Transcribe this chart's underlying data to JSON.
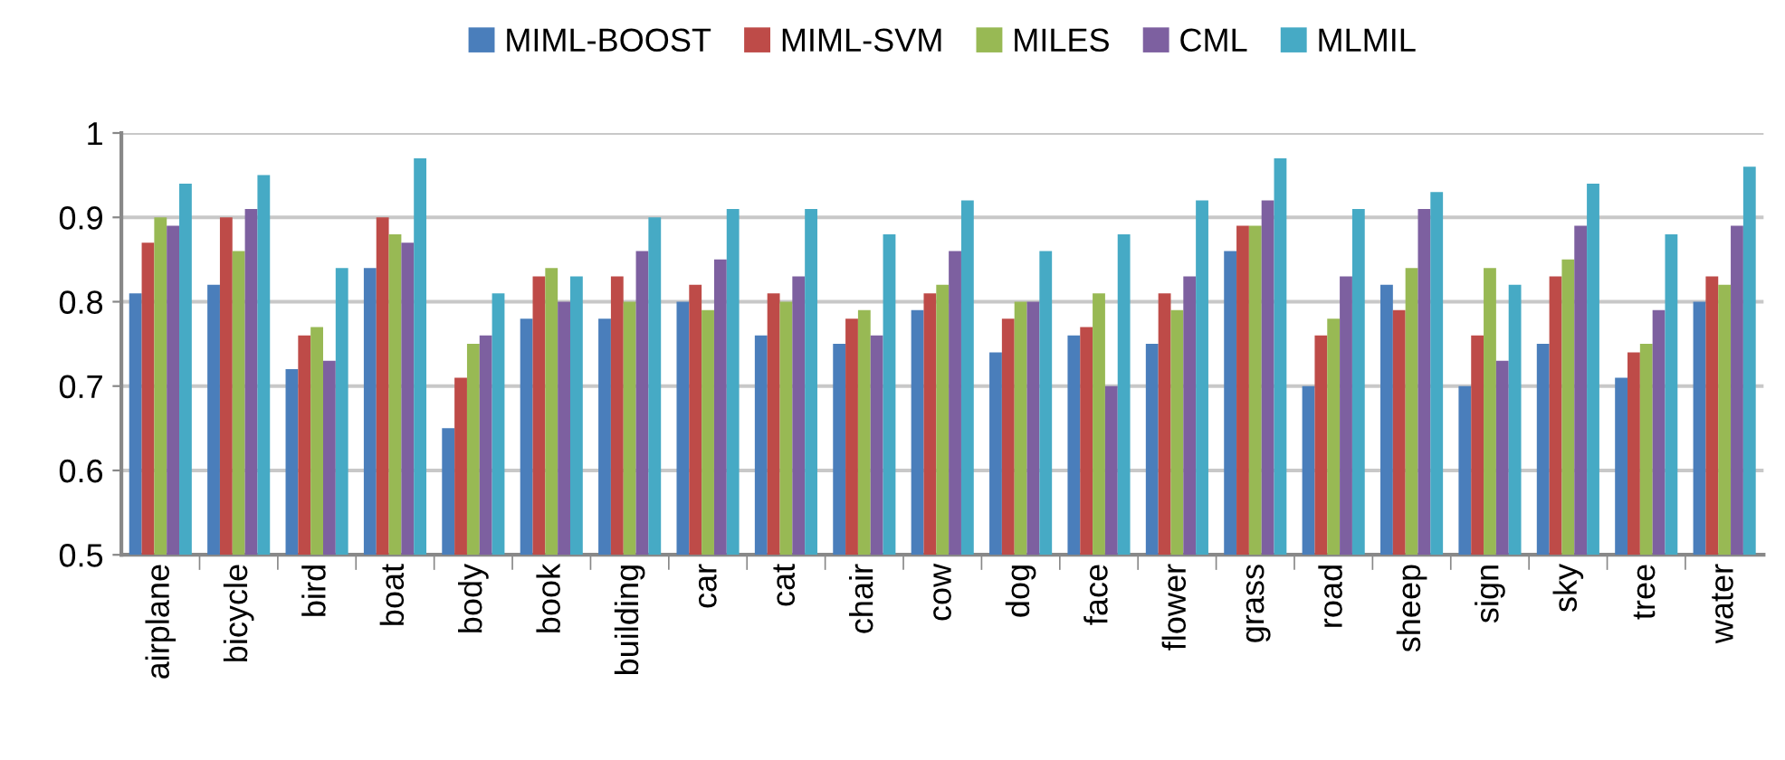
{
  "chart_data": {
    "type": "bar",
    "categories": [
      "airplane",
      "bicycle",
      "bird",
      "boat",
      "body",
      "book",
      "building",
      "car",
      "cat",
      "chair",
      "cow",
      "dog",
      "face",
      "flower",
      "grass",
      "road",
      "sheep",
      "sign",
      "sky",
      "tree",
      "water"
    ],
    "series": [
      {
        "name": "MIML-BOOST",
        "color": "#4a7ebb",
        "values": [
          0.81,
          0.82,
          0.72,
          0.84,
          0.65,
          0.78,
          0.78,
          0.8,
          0.76,
          0.75,
          0.79,
          0.74,
          0.76,
          0.75,
          0.86,
          0.7,
          0.82,
          0.7,
          0.75,
          0.71,
          0.8
        ]
      },
      {
        "name": "MIML-SVM",
        "color": "#be4b48",
        "values": [
          0.87,
          0.9,
          0.76,
          0.9,
          0.71,
          0.83,
          0.83,
          0.82,
          0.81,
          0.78,
          0.81,
          0.78,
          0.77,
          0.81,
          0.89,
          0.76,
          0.79,
          0.76,
          0.83,
          0.74,
          0.83
        ]
      },
      {
        "name": "MILES",
        "color": "#98b954",
        "values": [
          0.9,
          0.86,
          0.77,
          0.88,
          0.75,
          0.84,
          0.8,
          0.79,
          0.8,
          0.79,
          0.82,
          0.8,
          0.81,
          0.79,
          0.89,
          0.78,
          0.84,
          0.84,
          0.85,
          0.75,
          0.82
        ]
      },
      {
        "name": "CML",
        "color": "#7d60a0",
        "values": [
          0.89,
          0.91,
          0.73,
          0.87,
          0.76,
          0.8,
          0.86,
          0.85,
          0.83,
          0.76,
          0.86,
          0.8,
          0.7,
          0.83,
          0.92,
          0.83,
          0.91,
          0.73,
          0.89,
          0.79,
          0.89
        ]
      },
      {
        "name": "MLMIL",
        "color": "#46aac5",
        "values": [
          0.94,
          0.95,
          0.84,
          0.97,
          0.81,
          0.83,
          0.9,
          0.91,
          0.91,
          0.88,
          0.92,
          0.86,
          0.88,
          0.92,
          0.97,
          0.91,
          0.93,
          0.82,
          0.94,
          0.88,
          0.96
        ]
      }
    ],
    "ylim": [
      0.5,
      1
    ],
    "yticks": [
      0.5,
      0.6,
      0.7,
      0.8,
      0.9,
      1
    ],
    "grid": "y",
    "legend": "top"
  }
}
